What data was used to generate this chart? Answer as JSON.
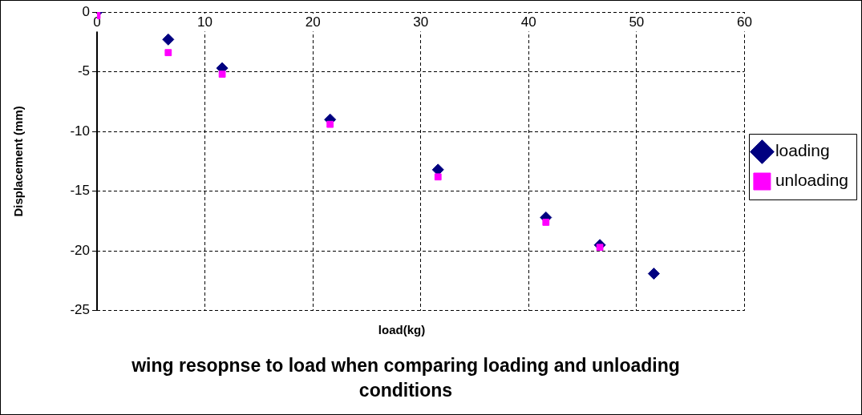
{
  "chart_data": {
    "type": "scatter",
    "title": "wing resopnse to load when comparing loading and unloading conditions",
    "xlabel": "load(kg)",
    "ylabel": "Displacement (mm)",
    "series": [
      {
        "name": "loading",
        "color": "#000080",
        "marker": "diamond",
        "x": [
          0,
          6.6,
          11.6,
          21.6,
          31.6,
          41.6,
          46.6,
          51.6
        ],
        "values": [
          0,
          -2.3,
          -4.7,
          -9.0,
          -13.2,
          -17.2,
          -19.5,
          -21.9
        ]
      },
      {
        "name": "unloading",
        "color": "#ff00ff",
        "marker": "square",
        "x": [
          0,
          6.6,
          11.6,
          21.6,
          31.6,
          41.6,
          46.6
        ],
        "values": [
          -0.3,
          -3.4,
          -5.2,
          -9.4,
          -13.8,
          -17.6,
          -19.7
        ]
      }
    ],
    "xlim": [
      0,
      60
    ],
    "xticks": [
      0,
      10,
      20,
      30,
      40,
      50,
      60
    ],
    "ylim": [
      -25,
      0
    ],
    "yticks": [
      -25,
      -20,
      -15,
      -10,
      -5,
      0
    ],
    "grid": true,
    "legend": "right"
  }
}
